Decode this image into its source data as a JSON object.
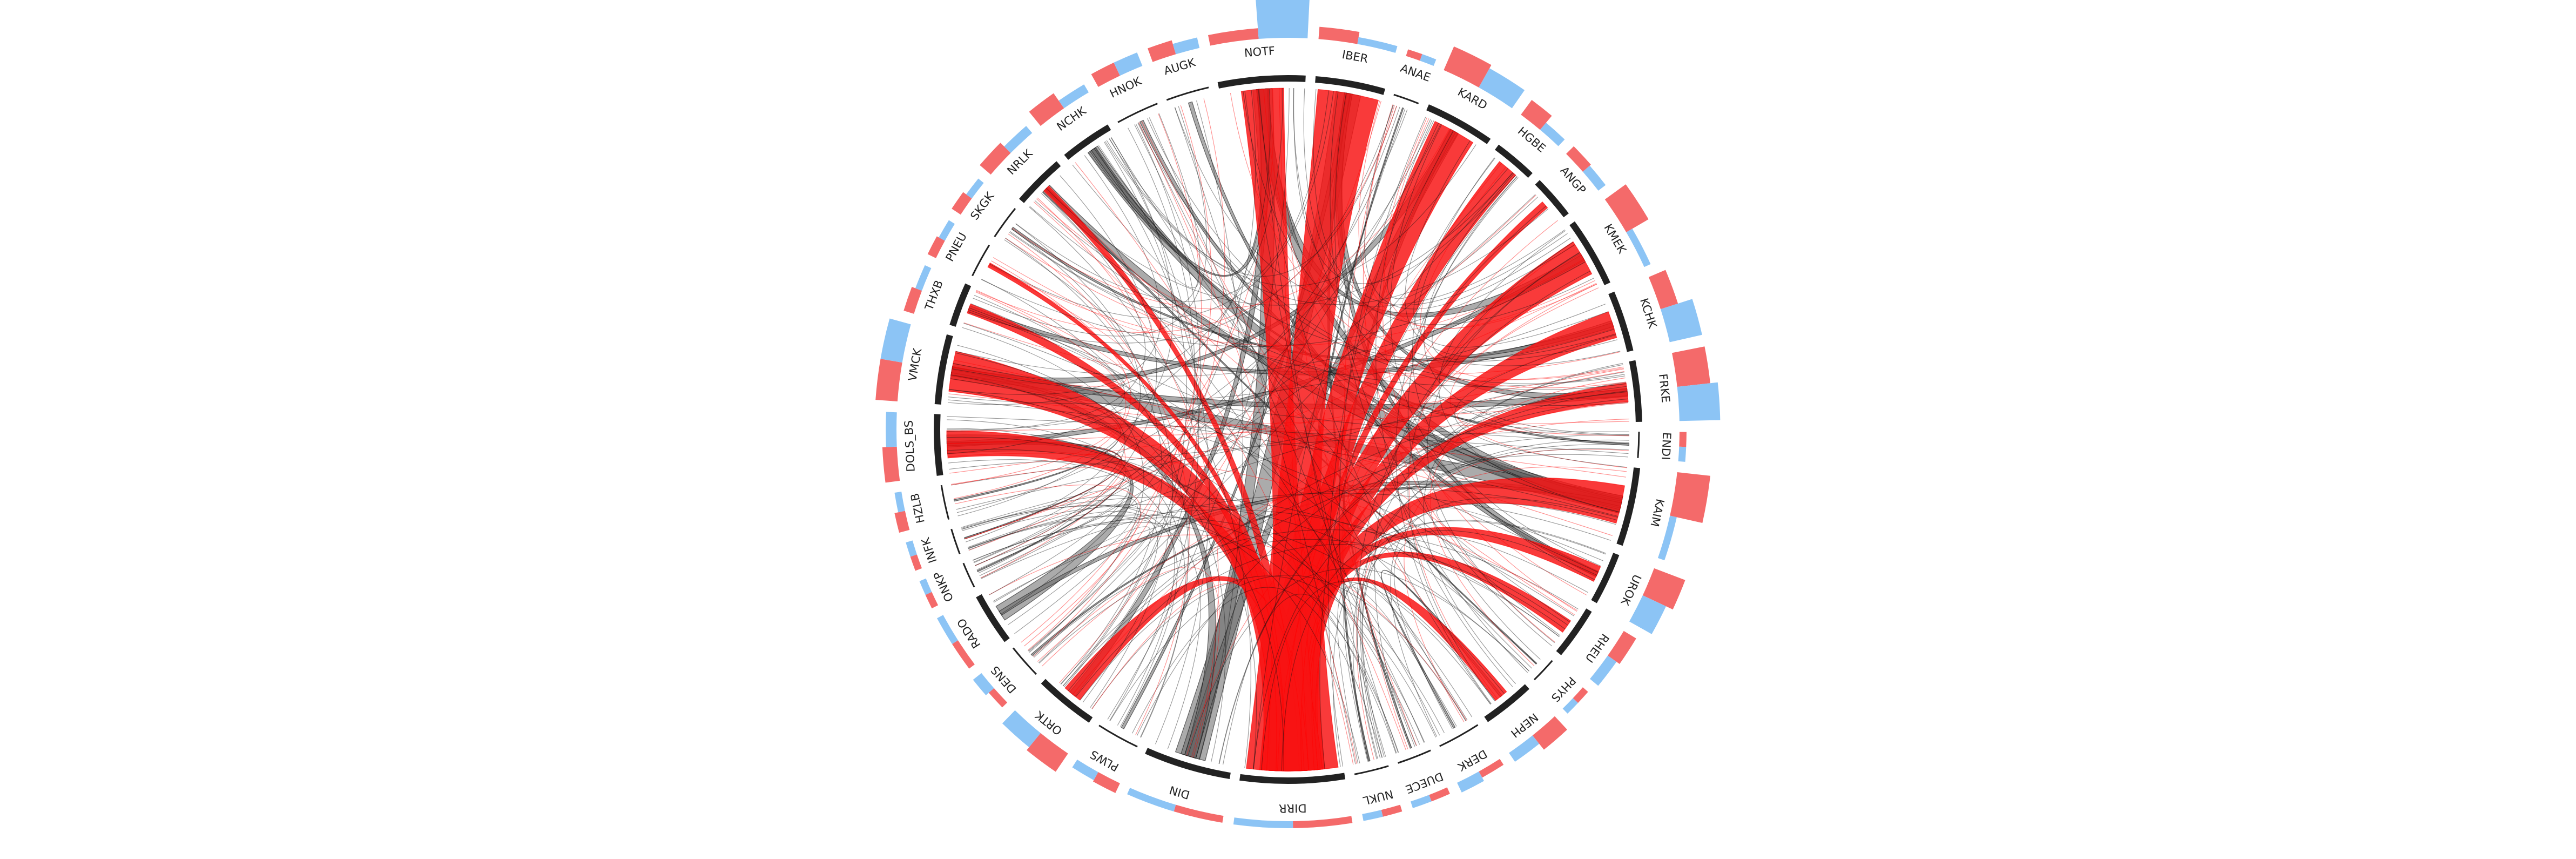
{
  "colors": {
    "background": "#ffffff",
    "segment_arc": "#222222",
    "highlight_band": "#bbbbbb",
    "flow_primary": "#ff0000",
    "flow_secondary": "#111111",
    "bar_red": "#f46a6a",
    "bar_blue": "#8cc4f5"
  },
  "sectors": [
    {
      "label": "NOTF",
      "weight": 10,
      "hub": true,
      "outer": [
        0.1,
        0.95
      ]
    },
    {
      "label": "IBER",
      "weight": 8,
      "hub": true,
      "outer": [
        0.12,
        0.05
      ]
    },
    {
      "label": "ANAE",
      "weight": 3,
      "hub": false,
      "outer": [
        0.05,
        0.05
      ]
    },
    {
      "label": "KARD",
      "weight": 8,
      "hub": true,
      "outer": [
        0.3,
        0.25
      ]
    },
    {
      "label": "HGBE",
      "weight": 5,
      "hub": true,
      "outer": [
        0.2,
        0.08
      ]
    },
    {
      "label": "ANGP",
      "weight": 5,
      "hub": true,
      "outer": [
        0.1,
        0.08
      ]
    },
    {
      "label": "KMEK",
      "weight": 8,
      "hub": true,
      "outer": [
        0.3,
        0.05
      ]
    },
    {
      "label": "KCHK",
      "weight": 7,
      "hub": true,
      "outer": [
        0.2,
        0.4
      ]
    },
    {
      "label": "FRKE",
      "weight": 7,
      "hub": true,
      "outer": [
        0.4,
        0.5
      ]
    },
    {
      "label": "ENDI",
      "weight": 3,
      "hub": false,
      "outer": [
        0.05,
        0.05
      ]
    },
    {
      "label": "KAIM",
      "weight": 9,
      "hub": true,
      "outer": [
        0.4,
        0.05
      ]
    },
    {
      "label": "UROK",
      "weight": 6,
      "hub": true,
      "outer": [
        0.4,
        0.3
      ]
    },
    {
      "label": "RHEU",
      "weight": 6,
      "hub": true,
      "outer": [
        0.15,
        0.1
      ]
    },
    {
      "label": "PHYS",
      "weight": 3,
      "hub": false,
      "outer": [
        0.05,
        0.05
      ]
    },
    {
      "label": "NEPH",
      "weight": 6,
      "hub": true,
      "outer": [
        0.2,
        0.1
      ]
    },
    {
      "label": "DERK",
      "weight": 5,
      "hub": false,
      "outer": [
        0.05,
        0.1
      ]
    },
    {
      "label": "DUECE",
      "weight": 4,
      "hub": false,
      "outer": [
        0.05,
        0.05
      ]
    },
    {
      "label": "NUKL",
      "weight": 4,
      "hub": false,
      "outer": [
        0.05,
        0.05
      ]
    },
    {
      "label": "DIRR",
      "weight": 12,
      "hub": true,
      "outer": [
        0.05,
        0.05
      ]
    },
    {
      "label": "DIN",
      "weight": 10,
      "hub": true,
      "outer": [
        0.05,
        0.05
      ]
    },
    {
      "label": "PLWS",
      "weight": 5,
      "hub": false,
      "outer": [
        0.1,
        0.08
      ]
    },
    {
      "label": "ORTK",
      "weight": 7,
      "hub": true,
      "outer": [
        0.25,
        0.2
      ]
    },
    {
      "label": "DENS",
      "weight": 4,
      "hub": false,
      "outer": [
        0.05,
        0.1
      ]
    },
    {
      "label": "RADO",
      "weight": 6,
      "hub": true,
      "outer": [
        0.05,
        0.05
      ]
    },
    {
      "label": "ONKP",
      "weight": 3,
      "hub": false,
      "outer": [
        0.05,
        0.05
      ]
    },
    {
      "label": "INFK",
      "weight": 3,
      "hub": false,
      "outer": [
        0.05,
        0.05
      ]
    },
    {
      "label": "HZLB",
      "weight": 4,
      "hub": false,
      "outer": [
        0.1,
        0.05
      ]
    },
    {
      "label": "DOLS_BS",
      "weight": 7,
      "hub": true,
      "outer": [
        0.15,
        0.1
      ]
    },
    {
      "label": "VMCK",
      "weight": 8,
      "hub": true,
      "outer": [
        0.25,
        0.25
      ]
    },
    {
      "label": "THXB",
      "weight": 5,
      "hub": true,
      "outer": [
        0.1,
        0.05
      ]
    },
    {
      "label": "PNEU",
      "weight": 4,
      "hub": false,
      "outer": [
        0.08,
        0.05
      ]
    },
    {
      "label": "SKGK",
      "weight": 4,
      "hub": false,
      "outer": [
        0.1,
        0.05
      ]
    },
    {
      "label": "NRLK",
      "weight": 6,
      "hub": true,
      "outer": [
        0.15,
        0.08
      ]
    },
    {
      "label": "NCHK",
      "weight": 6,
      "hub": true,
      "outer": [
        0.2,
        0.08
      ]
    },
    {
      "label": "HNOK",
      "weight": 5,
      "hub": false,
      "outer": [
        0.15,
        0.15
      ]
    },
    {
      "label": "AUGK",
      "weight": 5,
      "hub": false,
      "outer": [
        0.15,
        0.1
      ]
    }
  ],
  "flows": [
    {
      "from": "DIRR",
      "to": "IBER",
      "value": 40,
      "kind": "red"
    },
    {
      "from": "DIRR",
      "to": "KARD",
      "value": 28,
      "kind": "red"
    },
    {
      "from": "DIRR",
      "to": "HGBE",
      "value": 22,
      "kind": "red"
    },
    {
      "from": "DIRR",
      "to": "KMEK",
      "value": 24,
      "kind": "red"
    },
    {
      "from": "DIRR",
      "to": "KCHK",
      "value": 20,
      "kind": "red"
    },
    {
      "from": "DIRR",
      "to": "FRKE",
      "value": 14,
      "kind": "red"
    },
    {
      "from": "DIRR",
      "to": "KAIM",
      "value": 22,
      "kind": "red"
    },
    {
      "from": "DIRR",
      "to": "UROK",
      "value": 14,
      "kind": "red"
    },
    {
      "from": "DIRR",
      "to": "RHEU",
      "value": 12,
      "kind": "red"
    },
    {
      "from": "DIRR",
      "to": "NEPH",
      "value": 12,
      "kind": "red"
    },
    {
      "from": "DIRR",
      "to": "VMCK",
      "value": 26,
      "kind": "red"
    },
    {
      "from": "DIRR",
      "to": "DOLS_BS",
      "value": 20,
      "kind": "red"
    },
    {
      "from": "DIRR",
      "to": "THXB",
      "value": 10,
      "kind": "red"
    },
    {
      "from": "DIRR",
      "to": "NOTF",
      "value": 22,
      "kind": "red"
    },
    {
      "from": "DIRR",
      "to": "ORTK",
      "value": 14,
      "kind": "red"
    },
    {
      "from": "DIRR",
      "to": "PNEU",
      "value": 6,
      "kind": "red"
    },
    {
      "from": "DIRR",
      "to": "NRLK",
      "value": 6,
      "kind": "red"
    },
    {
      "from": "DIRR",
      "to": "ANGP",
      "value": 8,
      "kind": "red"
    },
    {
      "from": "DIN",
      "to": "IBER",
      "value": 16,
      "kind": "black"
    },
    {
      "from": "DIN",
      "to": "NOTF",
      "value": 10,
      "kind": "black"
    },
    {
      "from": "DIN",
      "to": "KARD",
      "value": 6,
      "kind": "black"
    },
    {
      "from": "DIN",
      "to": "VMCK",
      "value": 6,
      "kind": "black"
    },
    {
      "from": "RADO",
      "to": "DOLS_BS",
      "value": 14,
      "kind": "black"
    },
    {
      "from": "RADO",
      "to": "KAIM",
      "value": 4,
      "kind": "black"
    },
    {
      "from": "NCHK",
      "to": "KAIM",
      "value": 10,
      "kind": "black"
    },
    {
      "from": "NRLK",
      "to": "KAIM",
      "value": 8,
      "kind": "black"
    },
    {
      "from": "NCHK",
      "to": "NOTF",
      "value": 6,
      "kind": "black"
    },
    {
      "from": "VMCK",
      "to": "KAIM",
      "value": 10,
      "kind": "black"
    },
    {
      "from": "VMCK",
      "to": "FRKE",
      "value": 6,
      "kind": "black"
    },
    {
      "from": "THXB",
      "to": "KCHK",
      "value": 6,
      "kind": "black"
    },
    {
      "from": "NOTF",
      "to": "KMEK",
      "value": 6,
      "kind": "black"
    },
    {
      "from": "IBER",
      "to": "FRKE",
      "value": 5,
      "kind": "black"
    },
    {
      "from": "IBER",
      "to": "UROK",
      "value": 5,
      "kind": "black"
    },
    {
      "from": "HNOK",
      "to": "KAIM",
      "value": 4,
      "kind": "black"
    },
    {
      "from": "AUGK",
      "to": "UROK",
      "value": 4,
      "kind": "black"
    },
    {
      "from": "NOTF",
      "to": "KAIM",
      "value": 6,
      "kind": "black"
    },
    {
      "from": "KARD",
      "to": "VMCK",
      "value": 5,
      "kind": "black"
    },
    {
      "from": "ORTK",
      "to": "NOTF",
      "value": 5,
      "kind": "black"
    },
    {
      "from": "DOLS_BS",
      "to": "KMEK",
      "value": 4,
      "kind": "black"
    },
    {
      "from": "SKGK",
      "to": "KCHK",
      "value": 3,
      "kind": "black"
    },
    {
      "from": "ENDI",
      "to": "NCHK",
      "value": 3,
      "kind": "black"
    },
    {
      "from": "PLWS",
      "to": "IBER",
      "value": 3,
      "kind": "black"
    },
    {
      "from": "INFK",
      "to": "DOLS_BS",
      "value": 2,
      "kind": "black"
    },
    {
      "from": "ONKP",
      "to": "DOLS_BS",
      "value": 2,
      "kind": "black"
    },
    {
      "from": "NUKL",
      "to": "KARD",
      "value": 2,
      "kind": "black"
    },
    {
      "from": "DERK",
      "to": "NEPH",
      "value": 2,
      "kind": "black"
    },
    {
      "from": "HZLB",
      "to": "VMCK",
      "value": 2,
      "kind": "black"
    },
    {
      "from": "ANAE",
      "to": "DIRR",
      "value": 2,
      "kind": "black"
    },
    {
      "from": "DUECE",
      "to": "IBER",
      "value": 2,
      "kind": "black"
    },
    {
      "from": "PHYS",
      "to": "NRLK",
      "value": 2,
      "kind": "black"
    },
    {
      "from": "DENS",
      "to": "KAIM",
      "value": 2,
      "kind": "black"
    }
  ]
}
